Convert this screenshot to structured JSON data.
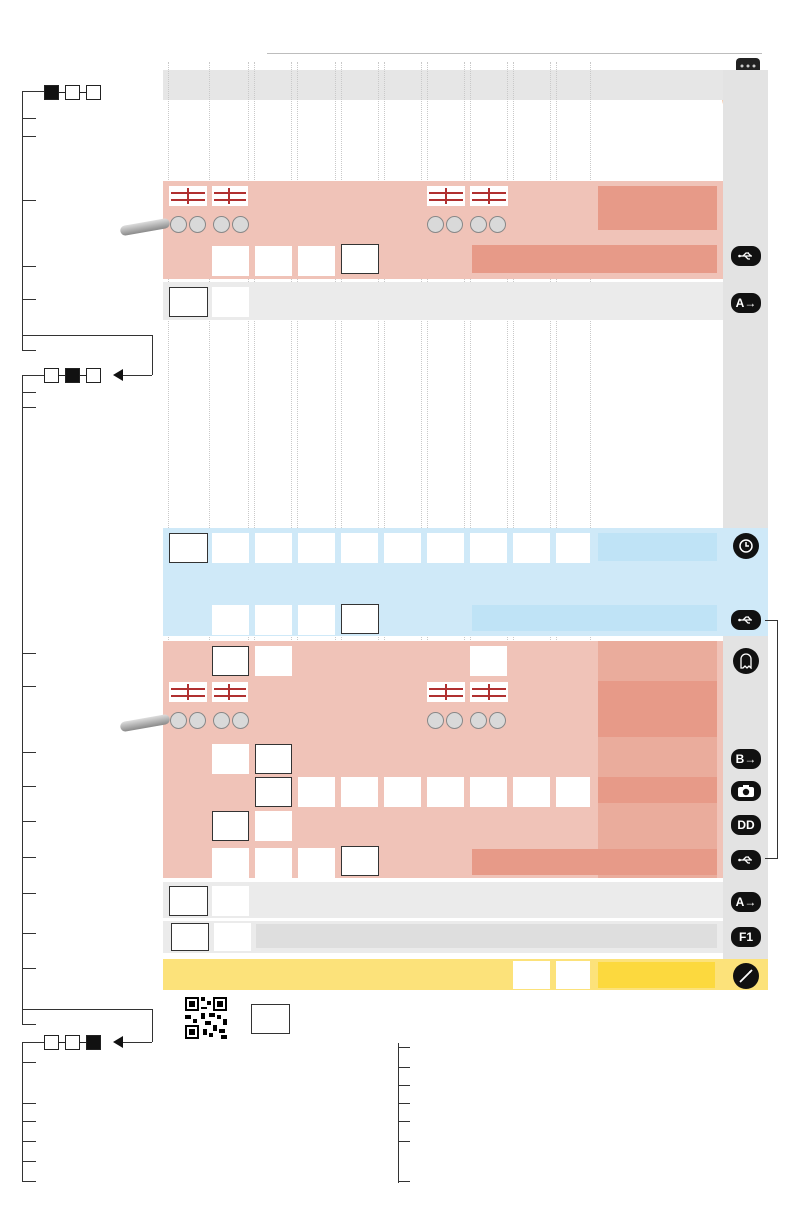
{
  "modes": {
    "mode1": {
      "squares": [
        true,
        false,
        false
      ]
    },
    "mode2": {
      "squares": [
        false,
        true,
        false
      ]
    },
    "mode3": {
      "squares": [
        false,
        false,
        true
      ]
    }
  },
  "right_icons": [
    {
      "name": "usb-icon",
      "label": ""
    },
    {
      "name": "a-input-icon",
      "label": "A"
    },
    {
      "name": "clock-icon",
      "label": ""
    },
    {
      "name": "usb-icon",
      "label": ""
    },
    {
      "name": "ghost-icon",
      "label": ""
    },
    {
      "name": "b-input-icon",
      "label": "B"
    },
    {
      "name": "camera-icon",
      "label": ""
    },
    {
      "name": "dd-icon",
      "label": "DD"
    },
    {
      "name": "usb-icon",
      "label": ""
    },
    {
      "name": "a-input-icon",
      "label": "A"
    },
    {
      "name": "f1-key-icon",
      "label": "F1"
    },
    {
      "name": "signal-icon",
      "label": ""
    }
  ],
  "colors": {
    "salmon": "#f0c3b8",
    "salmon_dark": "#e79a88",
    "gray_band": "#ebebeb",
    "blue_band": "#cfe9f8",
    "blue_band_light": "#bfe3f6",
    "yellow_band": "#fce27a",
    "yellow_dark": "#fcd93e",
    "right_column": "#e3e3e3"
  },
  "f1": {
    "label": "F1"
  }
}
